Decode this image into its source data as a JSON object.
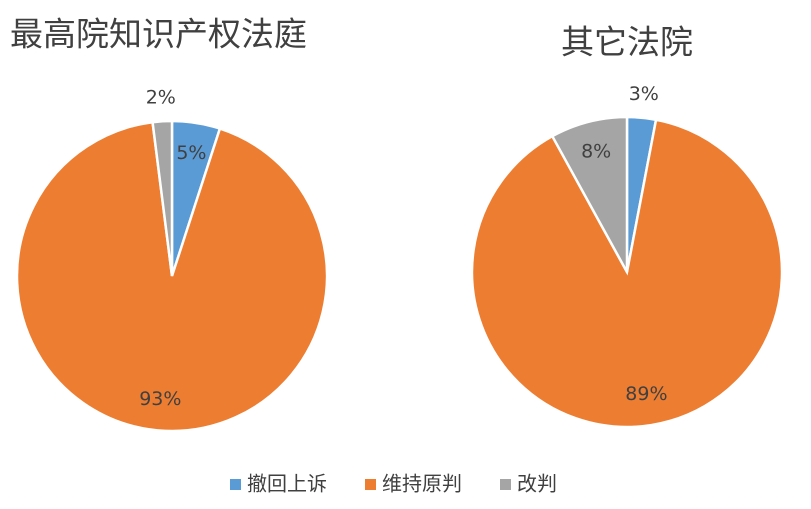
{
  "chart_data": [
    {
      "type": "pie",
      "title": "最高院知识产权法庭",
      "categories": [
        "撤回上诉",
        "维持原判",
        "改判"
      ],
      "values": [
        5,
        93,
        2
      ],
      "value_labels": [
        "5%",
        "93%",
        "2%"
      ],
      "colors": [
        "#5b9bd5",
        "#ed7d31",
        "#a5a5a5"
      ],
      "legend": "bottom"
    },
    {
      "type": "pie",
      "title": "其它法院",
      "categories": [
        "撤回上诉",
        "维持原判",
        "改判"
      ],
      "values": [
        3,
        89,
        8
      ],
      "value_labels": [
        "3%",
        "89%",
        "8%"
      ],
      "colors": [
        "#5b9bd5",
        "#ed7d31",
        "#a5a5a5"
      ],
      "legend": "bottom"
    }
  ]
}
